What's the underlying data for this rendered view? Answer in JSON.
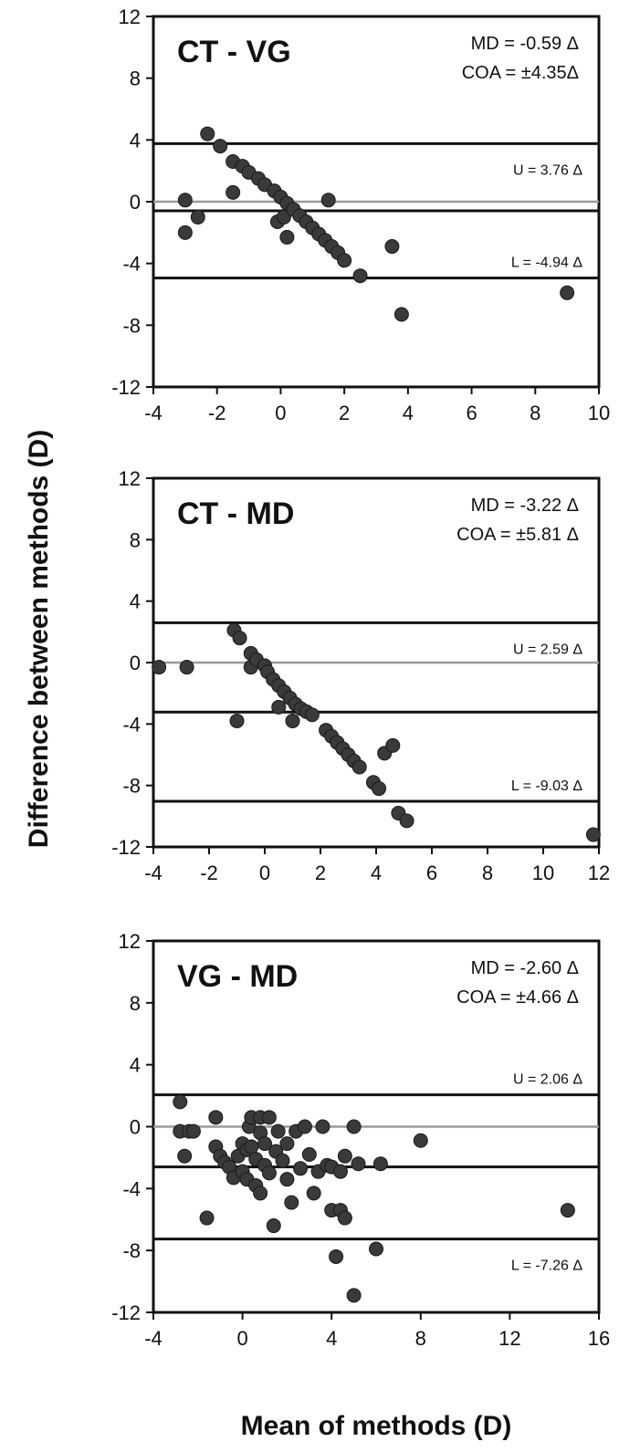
{
  "figure": {
    "ylabel": "Difference between methods (D)",
    "xlabel": "Mean of methods (D)"
  },
  "chart_data": [
    {
      "type": "scatter",
      "title": "CT - VG",
      "stats": [
        "MD = -0.59 Δ",
        "COA = ±4.35Δ"
      ],
      "xlim": [
        -4,
        10
      ],
      "ylim": [
        -12,
        12
      ],
      "x_ticks": [
        -4,
        -2,
        0,
        2,
        4,
        6,
        8,
        10
      ],
      "y_ticks": [
        12,
        8,
        4,
        0,
        -4,
        -8,
        -12
      ],
      "zero_line": 0,
      "mean_line": -0.59,
      "upper_limit": {
        "value": 3.76,
        "label": "U = 3.76 Δ"
      },
      "lower_limit": {
        "value": -4.94,
        "label": "L = -4.94 Δ"
      },
      "points": [
        [
          -3.0,
          0.1
        ],
        [
          -3.0,
          -2.0
        ],
        [
          -2.6,
          -1.0
        ],
        [
          -2.3,
          4.4
        ],
        [
          -1.9,
          3.6
        ],
        [
          -1.5,
          2.6
        ],
        [
          -1.5,
          0.6
        ],
        [
          -1.2,
          2.3
        ],
        [
          -1.0,
          1.9
        ],
        [
          -0.7,
          1.5
        ],
        [
          -0.5,
          1.1
        ],
        [
          -0.2,
          0.7
        ],
        [
          0.0,
          0.3
        ],
        [
          -0.1,
          -1.3
        ],
        [
          0.1,
          -1.0
        ],
        [
          0.2,
          -0.1
        ],
        [
          0.4,
          -0.5
        ],
        [
          0.2,
          -2.3
        ],
        [
          0.6,
          -0.9
        ],
        [
          0.8,
          -1.3
        ],
        [
          1.0,
          -1.7
        ],
        [
          1.2,
          -2.1
        ],
        [
          1.4,
          -2.5
        ],
        [
          1.5,
          0.1
        ],
        [
          1.6,
          -2.9
        ],
        [
          1.8,
          -3.3
        ],
        [
          2.0,
          -3.8
        ],
        [
          2.5,
          -4.8
        ],
        [
          3.5,
          -2.9
        ],
        [
          3.8,
          -7.3
        ],
        [
          9.0,
          -5.9
        ]
      ]
    },
    {
      "type": "scatter",
      "title": "CT - MD",
      "stats": [
        "MD = -3.22 Δ",
        "COA = ±5.81 Δ"
      ],
      "xlim": [
        -4,
        12
      ],
      "ylim": [
        -12,
        12
      ],
      "x_ticks": [
        -4,
        -2,
        0,
        2,
        4,
        6,
        8,
        10,
        12
      ],
      "y_ticks": [
        12,
        8,
        4,
        0,
        -4,
        -8,
        -12
      ],
      "zero_line": 0,
      "mean_line": -3.22,
      "upper_limit": {
        "value": 2.59,
        "label": "U = 2.59 Δ"
      },
      "lower_limit": {
        "value": -9.03,
        "label": "L = -9.03 Δ"
      },
      "points": [
        [
          -3.8,
          -0.3
        ],
        [
          -2.8,
          -0.3
        ],
        [
          -1.1,
          2.1
        ],
        [
          -0.9,
          1.6
        ],
        [
          -1.0,
          -3.8
        ],
        [
          -0.5,
          0.6
        ],
        [
          -0.5,
          -0.3
        ],
        [
          -0.3,
          0.2
        ],
        [
          0.0,
          -0.2
        ],
        [
          0.1,
          -0.6
        ],
        [
          0.3,
          -1.1
        ],
        [
          0.5,
          -1.5
        ],
        [
          0.5,
          -2.9
        ],
        [
          0.7,
          -1.9
        ],
        [
          0.9,
          -2.3
        ],
        [
          1.1,
          -2.7
        ],
        [
          1.0,
          -3.8
        ],
        [
          1.3,
          -3.0
        ],
        [
          1.5,
          -3.2
        ],
        [
          1.7,
          -3.4
        ],
        [
          2.2,
          -4.4
        ],
        [
          2.4,
          -4.8
        ],
        [
          2.6,
          -5.2
        ],
        [
          2.8,
          -5.6
        ],
        [
          3.0,
          -6.0
        ],
        [
          3.2,
          -6.4
        ],
        [
          3.4,
          -6.8
        ],
        [
          3.9,
          -7.8
        ],
        [
          4.1,
          -8.2
        ],
        [
          4.3,
          -5.9
        ],
        [
          4.6,
          -5.4
        ],
        [
          4.8,
          -9.8
        ],
        [
          5.1,
          -10.3
        ],
        [
          11.8,
          -11.2
        ]
      ]
    },
    {
      "type": "scatter",
      "title": "VG - MD",
      "stats": [
        "MD = -2.60 Δ",
        "COA = ±4.66 Δ"
      ],
      "xlim": [
        -4,
        16
      ],
      "ylim": [
        -12,
        12
      ],
      "x_ticks": [
        -4,
        0,
        4,
        8,
        12,
        16
      ],
      "y_ticks": [
        12,
        8,
        4,
        0,
        -4,
        -8,
        -12
      ],
      "zero_line": 0,
      "mean_line": -2.6,
      "upper_limit": {
        "value": 2.06,
        "label": "U = 2.06 Δ"
      },
      "lower_limit": {
        "value": -7.26,
        "label": "L = -7.26 Δ"
      },
      "points": [
        [
          -2.8,
          1.6
        ],
        [
          -2.8,
          -0.3
        ],
        [
          -2.4,
          -0.3
        ],
        [
          -2.6,
          -1.9
        ],
        [
          -2.2,
          -0.3
        ],
        [
          -1.6,
          -5.9
        ],
        [
          -1.2,
          0.6
        ],
        [
          -1.2,
          -1.3
        ],
        [
          -1.0,
          -1.9
        ],
        [
          -0.8,
          -2.3
        ],
        [
          -0.6,
          -2.6
        ],
        [
          -0.4,
          -3.3
        ],
        [
          -0.2,
          -1.9
        ],
        [
          0.0,
          -1.1
        ],
        [
          0.0,
          -2.9
        ],
        [
          0.2,
          -1.5
        ],
        [
          0.2,
          -3.4
        ],
        [
          0.3,
          0.0
        ],
        [
          0.4,
          0.6
        ],
        [
          0.4,
          -1.3
        ],
        [
          0.6,
          -2.1
        ],
        [
          0.6,
          -3.8
        ],
        [
          0.8,
          0.6
        ],
        [
          0.8,
          -0.4
        ],
        [
          0.8,
          -4.3
        ],
        [
          1.0,
          -1.1
        ],
        [
          1.0,
          -2.5
        ],
        [
          1.2,
          0.6
        ],
        [
          1.2,
          -3.0
        ],
        [
          1.4,
          -6.4
        ],
        [
          1.5,
          -1.6
        ],
        [
          1.6,
          -0.3
        ],
        [
          1.8,
          -2.2
        ],
        [
          2.0,
          -3.4
        ],
        [
          2.0,
          -1.1
        ],
        [
          2.2,
          -4.9
        ],
        [
          2.4,
          -0.3
        ],
        [
          2.6,
          -2.7
        ],
        [
          2.8,
          0.0
        ],
        [
          3.0,
          -1.8
        ],
        [
          3.2,
          -4.3
        ],
        [
          3.4,
          -2.9
        ],
        [
          3.6,
          0.0
        ],
        [
          3.8,
          -2.5
        ],
        [
          4.0,
          -5.4
        ],
        [
          4.0,
          -2.6
        ],
        [
          4.2,
          -8.4
        ],
        [
          4.4,
          -5.4
        ],
        [
          4.4,
          -2.9
        ],
        [
          4.6,
          -5.9
        ],
        [
          4.6,
          -1.9
        ],
        [
          5.0,
          0.0
        ],
        [
          5.0,
          -10.9
        ],
        [
          5.2,
          -2.4
        ],
        [
          6.0,
          -7.9
        ],
        [
          6.2,
          -2.4
        ],
        [
          8.0,
          -0.9
        ],
        [
          14.6,
          -5.4
        ]
      ]
    }
  ]
}
